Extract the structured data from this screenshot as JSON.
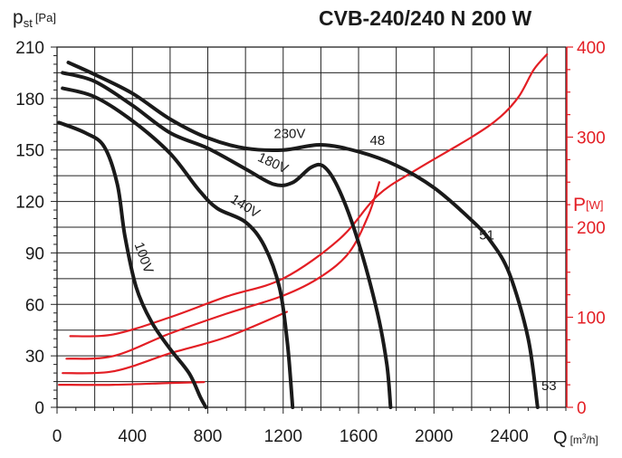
{
  "chart_data": {
    "type": "line",
    "title": "CVB-240/240 N 200 W",
    "ylabel_main": "p",
    "ylabel_sub": "st",
    "ylabel_unit": "[Pa]",
    "xlabel_main": "Q",
    "xlabel_unit_pre": "[m",
    "xlabel_unit_sup": "3",
    "xlabel_unit_post": "/h]",
    "y2label_main": "P",
    "y2label_unit": "[W]",
    "xlim": [
      0,
      2700
    ],
    "ylim": [
      0,
      210
    ],
    "y2lim": [
      0,
      400
    ],
    "x_ticks": [
      0,
      400,
      800,
      1200,
      1600,
      2000,
      2400
    ],
    "y_ticks": [
      0,
      30,
      60,
      90,
      120,
      150,
      180,
      210
    ],
    "y2_ticks": [
      0,
      100,
      200,
      300,
      400
    ],
    "grid": true,
    "colors": {
      "pressure": "#1a1a1a",
      "power": "#e31e24",
      "grid": "#222222"
    },
    "pressure_series": [
      {
        "name": "230V",
        "label": "230V",
        "points": [
          [
            60,
            201
          ],
          [
            200,
            194
          ],
          [
            400,
            183
          ],
          [
            600,
            168
          ],
          [
            800,
            157
          ],
          [
            1000,
            151
          ],
          [
            1200,
            150
          ],
          [
            1400,
            153
          ],
          [
            1600,
            149
          ],
          [
            1800,
            141
          ],
          [
            2000,
            128
          ],
          [
            2200,
            109
          ],
          [
            2300,
            97
          ],
          [
            2400,
            78
          ],
          [
            2500,
            40
          ],
          [
            2550,
            0
          ]
        ]
      },
      {
        "name": "180V",
        "label": "180V",
        "points": [
          [
            30,
            195
          ],
          [
            200,
            190
          ],
          [
            400,
            176
          ],
          [
            600,
            160
          ],
          [
            800,
            151
          ],
          [
            1000,
            139
          ],
          [
            1150,
            130
          ],
          [
            1250,
            131
          ],
          [
            1350,
            140
          ],
          [
            1420,
            140
          ],
          [
            1500,
            126
          ],
          [
            1600,
            96
          ],
          [
            1700,
            55
          ],
          [
            1750,
            25
          ],
          [
            1770,
            0
          ]
        ]
      },
      {
        "name": "140V",
        "label": "140V",
        "points": [
          [
            30,
            186
          ],
          [
            200,
            181
          ],
          [
            400,
            167
          ],
          [
            600,
            148
          ],
          [
            750,
            127
          ],
          [
            850,
            116
          ],
          [
            1000,
            108
          ],
          [
            1100,
            94
          ],
          [
            1180,
            70
          ],
          [
            1220,
            40
          ],
          [
            1240,
            15
          ],
          [
            1250,
            0
          ]
        ]
      },
      {
        "name": "100V",
        "label": "100V",
        "points": [
          [
            10,
            166
          ],
          [
            150,
            160
          ],
          [
            250,
            152
          ],
          [
            320,
            130
          ],
          [
            360,
            100
          ],
          [
            420,
            70
          ],
          [
            500,
            50
          ],
          [
            600,
            34
          ],
          [
            700,
            20
          ],
          [
            760,
            6
          ],
          [
            790,
            0
          ]
        ]
      }
    ],
    "power_series": [
      {
        "name": "230V",
        "points": [
          [
            70,
            79
          ],
          [
            300,
            81
          ],
          [
            600,
            100
          ],
          [
            900,
            123
          ],
          [
            1200,
            143
          ],
          [
            1500,
            187
          ],
          [
            1700,
            235
          ],
          [
            1900,
            263
          ],
          [
            2200,
            300
          ],
          [
            2350,
            322
          ],
          [
            2450,
            345
          ],
          [
            2530,
            375
          ],
          [
            2600,
            392
          ]
        ]
      },
      {
        "name": "180V",
        "points": [
          [
            50,
            54
          ],
          [
            300,
            57
          ],
          [
            600,
            82
          ],
          [
            900,
            104
          ],
          [
            1200,
            124
          ],
          [
            1400,
            145
          ],
          [
            1550,
            172
          ],
          [
            1650,
            212
          ],
          [
            1710,
            250
          ]
        ]
      },
      {
        "name": "140V",
        "points": [
          [
            30,
            38
          ],
          [
            300,
            40
          ],
          [
            600,
            60
          ],
          [
            900,
            78
          ],
          [
            1220,
            106
          ]
        ]
      },
      {
        "name": "100V",
        "points": [
          [
            10,
            25
          ],
          [
            300,
            25
          ],
          [
            600,
            27
          ],
          [
            780,
            28
          ]
        ]
      }
    ],
    "annotations": [
      {
        "text": "230V",
        "x": 1150,
        "y": 157,
        "rotate": 0
      },
      {
        "text": "180V",
        "x": 1060,
        "y": 144,
        "rotate": 25
      },
      {
        "text": "140V",
        "x": 915,
        "y": 120,
        "rotate": 32
      },
      {
        "text": "100V",
        "x": 410,
        "y": 95,
        "rotate": 70
      },
      {
        "text": "48",
        "x": 1660,
        "y": 153,
        "rotate": 0
      },
      {
        "text": "51",
        "x": 2240,
        "y": 98,
        "rotate": 0
      },
      {
        "text": "53",
        "x": 2570,
        "y": 10,
        "rotate": 0
      }
    ]
  }
}
